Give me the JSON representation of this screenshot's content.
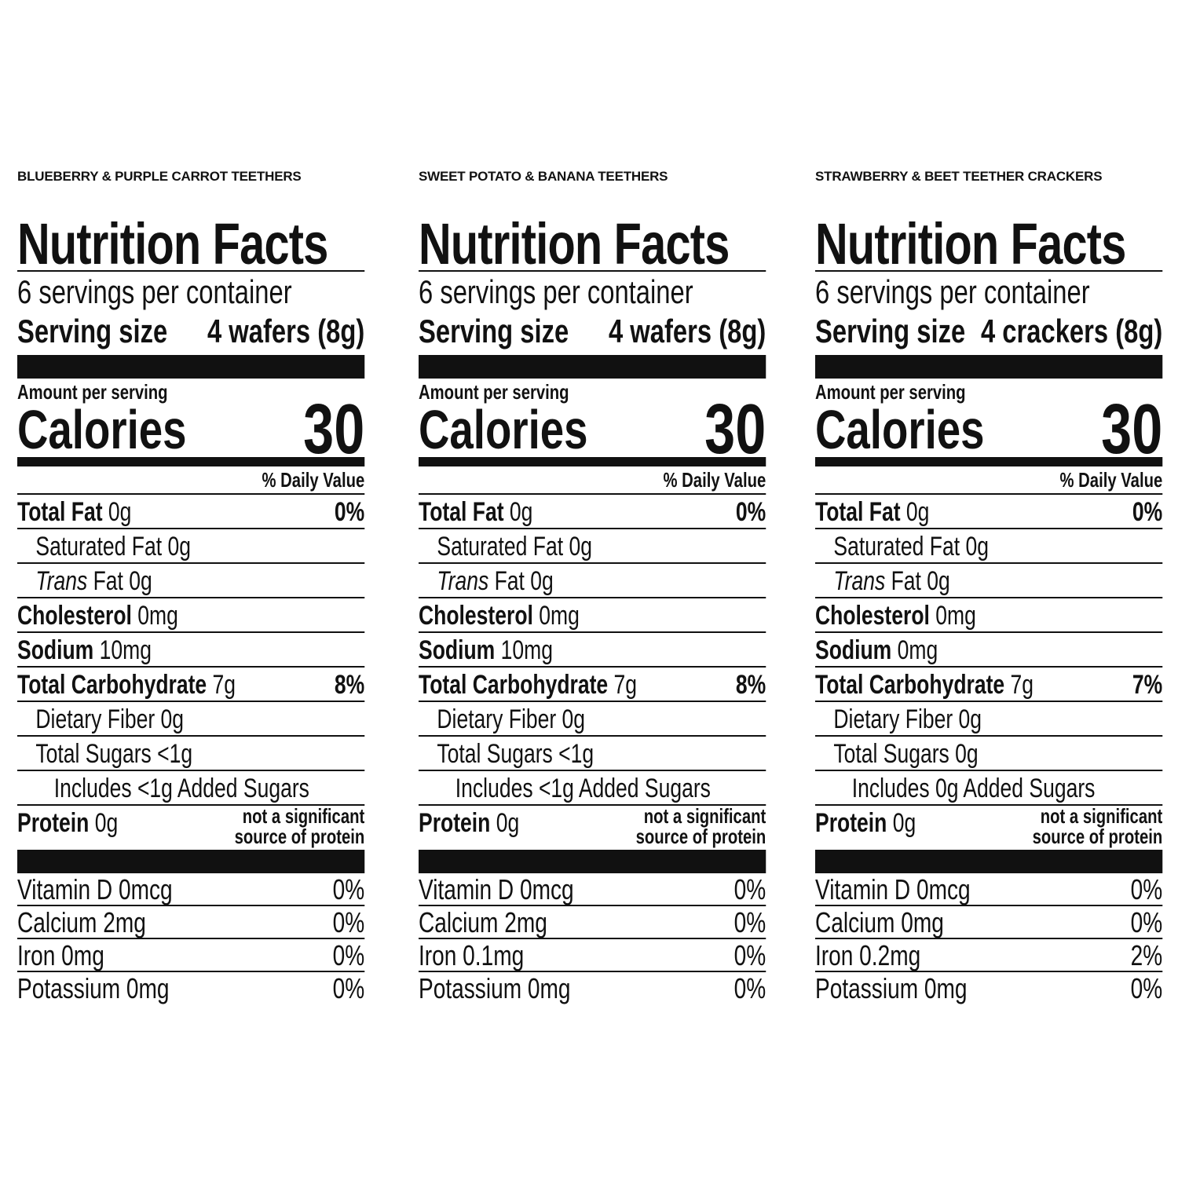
{
  "labels": [
    {
      "product": "BLUEBERRY & PURPLE CARROT TEETHERS",
      "title": "Nutrition Facts",
      "servings": "6 servings per container",
      "serving_size_label": "Serving size",
      "serving_size": "4 wafers (8g)",
      "amount_per_serving": "Amount per serving",
      "calories_label": "Calories",
      "calories": "30",
      "daily_value_header": "% Daily Value",
      "nutrients": [
        {
          "name": "Total Fat",
          "amount": "0g",
          "dv": "0%"
        },
        {
          "name": "Saturated Fat 0g"
        },
        {
          "name": "Trans",
          "amount": "Fat 0g"
        },
        {
          "name": "Cholesterol",
          "amount": "0mg"
        },
        {
          "name": "Sodium",
          "amount": "10mg"
        },
        {
          "name": "Total Carbohydrate",
          "amount": "7g",
          "dv": "8%"
        },
        {
          "name": "Dietary Fiber 0g"
        },
        {
          "name": "Total Sugars <1g"
        },
        {
          "name": "Includes <1g Added Sugars"
        }
      ],
      "protein": {
        "name": "Protein",
        "amount": "0g",
        "note": [
          "not a significant",
          "source of protein"
        ]
      },
      "vitamins": [
        {
          "name": "Vitamin D 0mcg",
          "dv": "0%"
        },
        {
          "name": "Calcium 2mg",
          "dv": "0%"
        },
        {
          "name": "Iron 0mg",
          "dv": "0%"
        },
        {
          "name": "Potassium 0mg",
          "dv": "0%"
        }
      ]
    },
    {
      "product": "SWEET POTATO & BANANA TEETHERS",
      "title": "Nutrition Facts",
      "servings": "6 servings per container",
      "serving_size_label": "Serving size",
      "serving_size": "4 wafers (8g)",
      "amount_per_serving": "Amount per serving",
      "calories_label": "Calories",
      "calories": "30",
      "daily_value_header": "% Daily Value",
      "nutrients": [
        {
          "name": "Total Fat",
          "amount": "0g",
          "dv": "0%"
        },
        {
          "name": "Saturated Fat 0g"
        },
        {
          "name": "Trans",
          "amount": "Fat 0g"
        },
        {
          "name": "Cholesterol",
          "amount": "0mg"
        },
        {
          "name": "Sodium",
          "amount": "10mg"
        },
        {
          "name": "Total Carbohydrate",
          "amount": "7g",
          "dv": "8%"
        },
        {
          "name": "Dietary Fiber 0g"
        },
        {
          "name": "Total Sugars <1g"
        },
        {
          "name": "Includes <1g Added Sugars"
        }
      ],
      "protein": {
        "name": "Protein",
        "amount": "0g",
        "note": [
          "not a significant",
          "source of protein"
        ]
      },
      "vitamins": [
        {
          "name": "Vitamin D 0mcg",
          "dv": "0%"
        },
        {
          "name": "Calcium 2mg",
          "dv": "0%"
        },
        {
          "name": "Iron 0.1mg",
          "dv": "0%"
        },
        {
          "name": "Potassium 0mg",
          "dv": "0%"
        }
      ]
    },
    {
      "product": "STRAWBERRY & BEET TEETHER CRACKERS",
      "title": "Nutrition Facts",
      "servings": "6 servings per container",
      "serving_size_label": "Serving size",
      "serving_size": "4 crackers (8g)",
      "amount_per_serving": "Amount per serving",
      "calories_label": "Calories",
      "calories": "30",
      "daily_value_header": "% Daily Value",
      "nutrients": [
        {
          "name": "Total Fat",
          "amount": "0g",
          "dv": "0%"
        },
        {
          "name": "Saturated Fat 0g"
        },
        {
          "name": "Trans",
          "amount": "Fat 0g"
        },
        {
          "name": "Cholesterol",
          "amount": "0mg"
        },
        {
          "name": "Sodium",
          "amount": "0mg"
        },
        {
          "name": "Total Carbohydrate",
          "amount": "7g",
          "dv": "7%"
        },
        {
          "name": "Dietary Fiber 0g"
        },
        {
          "name": "Total Sugars 0g"
        },
        {
          "name": "Includes 0g Added Sugars"
        }
      ],
      "protein": {
        "name": "Protein",
        "amount": "0g",
        "note": [
          "not a significant",
          "source of protein"
        ]
      },
      "vitamins": [
        {
          "name": "Vitamin D 0mcg",
          "dv": "0%"
        },
        {
          "name": "Calcium 0mg",
          "dv": "0%"
        },
        {
          "name": "Iron 0.2mg",
          "dv": "2%"
        },
        {
          "name": "Potassium 0mg",
          "dv": "0%"
        }
      ]
    }
  ]
}
